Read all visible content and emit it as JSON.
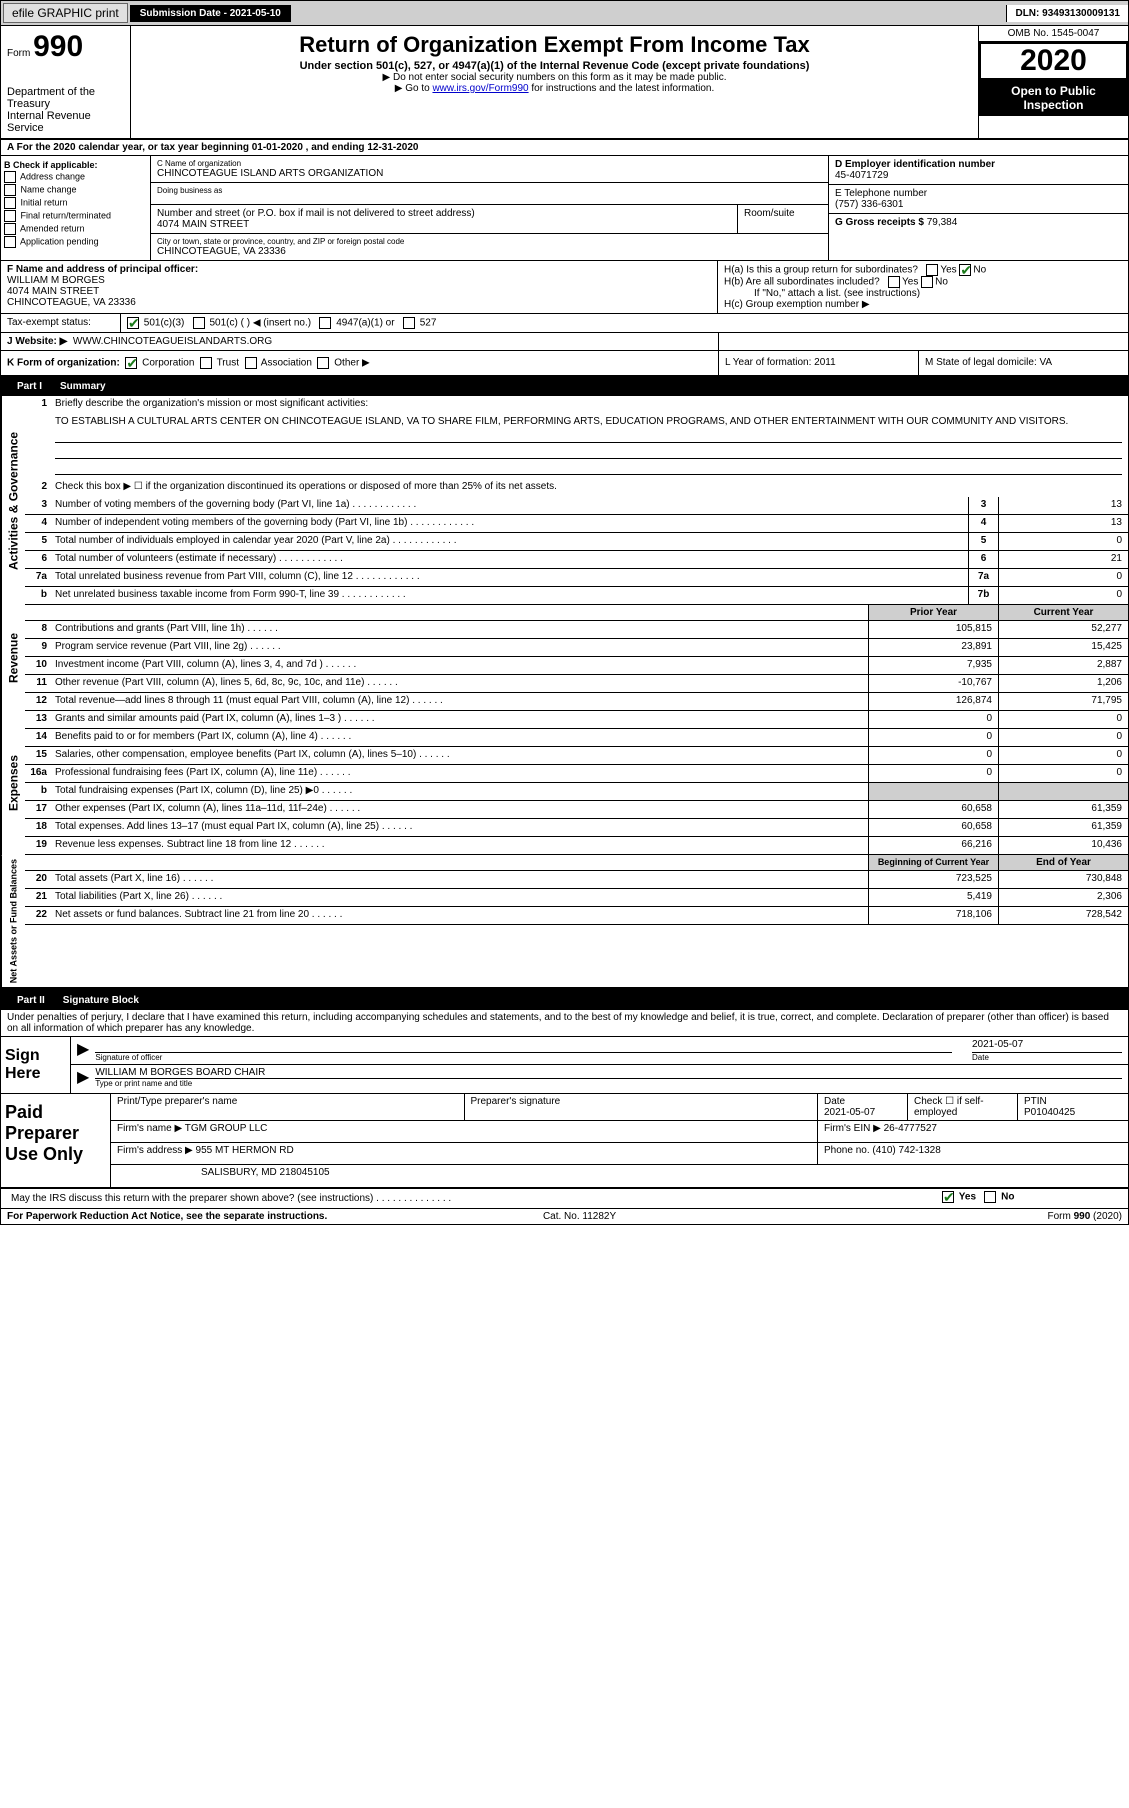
{
  "top": {
    "efile": "efile GRAPHIC print",
    "subdate_label": "Submission Date - 2021-05-10",
    "dln": "DLN: 93493130009131"
  },
  "header": {
    "form_label": "Form",
    "form_num": "990",
    "dept": "Department of the Treasury\nInternal Revenue Service",
    "title": "Return of Organization Exempt From Income Tax",
    "sub1": "Under section 501(c), 527, or 4947(a)(1) of the Internal Revenue Code (except private foundations)",
    "sub2": "▶ Do not enter social security numbers on this form as it may be made public.",
    "sub3_pre": "▶ Go to ",
    "sub3_link": "www.irs.gov/Form990",
    "sub3_post": " for instructions and the latest information.",
    "omb": "OMB No. 1545-0047",
    "year": "2020",
    "open": "Open to Public Inspection"
  },
  "rowA": "A For the 2020 calendar year, or tax year beginning 01-01-2020    , and ending 12-31-2020",
  "B": {
    "label": "B Check if applicable:",
    "opts": [
      "Address change",
      "Name change",
      "Initial return",
      "Final return/terminated",
      "Amended return",
      "Application pending"
    ]
  },
  "C": {
    "name_label": "C Name of organization",
    "name": "CHINCOTEAGUE ISLAND ARTS ORGANIZATION",
    "dba_label": "Doing business as",
    "dba": "",
    "street_label": "Number and street (or P.O. box if mail is not delivered to street address)",
    "street": "4074 MAIN STREET",
    "room_label": "Room/suite",
    "room": "",
    "city_label": "City or town, state or province, country, and ZIP or foreign postal code",
    "city": "CHINCOTEAGUE, VA  23336"
  },
  "D": {
    "label": "D Employer identification number",
    "val": "45-4071729"
  },
  "E": {
    "label": "E Telephone number",
    "val": "(757) 336-6301"
  },
  "G": {
    "label": "G Gross receipts $",
    "val": "79,384"
  },
  "F": {
    "label": "F  Name and address of principal officer:",
    "name": "WILLIAM M BORGES",
    "addr1": "4074 MAIN STREET",
    "addr2": "CHINCOTEAGUE, VA  23336"
  },
  "H": {
    "a": "H(a)  Is this a group return for subordinates?",
    "b": "H(b)  Are all subordinates included?",
    "b_note": "If \"No,\" attach a list. (see instructions)",
    "c": "H(c)  Group exemption number ▶"
  },
  "I": {
    "label": "Tax-exempt status:",
    "o1": "501(c)(3)",
    "o2": "501(c) (  ) ◀ (insert no.)",
    "o3": "4947(a)(1) or",
    "o4": "527"
  },
  "J": {
    "label": "J   Website: ▶",
    "val": "WWW.CHINCOTEAGUEISLANDARTS.ORG"
  },
  "K": {
    "label": "K Form of organization:",
    "opts": [
      "Corporation",
      "Trust",
      "Association",
      "Other ▶"
    ],
    "L": "L Year of formation: 2011",
    "M": "M State of legal domicile: VA"
  },
  "part1": {
    "hdr": "Part I",
    "title": "Summary",
    "l1": "Briefly describe the organization's mission or most significant activities:",
    "mission": "TO ESTABLISH A CULTURAL ARTS CENTER ON CHINCOTEAGUE ISLAND, VA TO SHARE FILM, PERFORMING ARTS, EDUCATION PROGRAMS, AND OTHER ENTERTAINMENT WITH OUR COMMUNITY AND VISITORS.",
    "l2": "Check this box ▶ ☐  if the organization discontinued its operations or disposed of more than 25% of its net assets.",
    "side_gov": "Activities & Governance",
    "side_rev": "Revenue",
    "side_exp": "Expenses",
    "side_net": "Net Assets or Fund Balances",
    "lines_gov": [
      {
        "n": "3",
        "d": "Number of voting members of the governing body (Part VI, line 1a)",
        "box": "3",
        "v": "13"
      },
      {
        "n": "4",
        "d": "Number of independent voting members of the governing body (Part VI, line 1b)",
        "box": "4",
        "v": "13"
      },
      {
        "n": "5",
        "d": "Total number of individuals employed in calendar year 2020 (Part V, line 2a)",
        "box": "5",
        "v": "0"
      },
      {
        "n": "6",
        "d": "Total number of volunteers (estimate if necessary)",
        "box": "6",
        "v": "21"
      },
      {
        "n": "7a",
        "d": "Total unrelated business revenue from Part VIII, column (C), line 12",
        "box": "7a",
        "v": "0"
      },
      {
        "n": "b",
        "d": "Net unrelated business taxable income from Form 990-T, line 39",
        "box": "7b",
        "v": "0"
      }
    ],
    "col_prior": "Prior Year",
    "col_curr": "Current Year",
    "lines_rev": [
      {
        "n": "8",
        "d": "Contributions and grants (Part VIII, line 1h)",
        "p": "105,815",
        "c": "52,277"
      },
      {
        "n": "9",
        "d": "Program service revenue (Part VIII, line 2g)",
        "p": "23,891",
        "c": "15,425"
      },
      {
        "n": "10",
        "d": "Investment income (Part VIII, column (A), lines 3, 4, and 7d )",
        "p": "7,935",
        "c": "2,887"
      },
      {
        "n": "11",
        "d": "Other revenue (Part VIII, column (A), lines 5, 6d, 8c, 9c, 10c, and 11e)",
        "p": "-10,767",
        "c": "1,206"
      },
      {
        "n": "12",
        "d": "Total revenue—add lines 8 through 11 (must equal Part VIII, column (A), line 12)",
        "p": "126,874",
        "c": "71,795"
      }
    ],
    "lines_exp": [
      {
        "n": "13",
        "d": "Grants and similar amounts paid (Part IX, column (A), lines 1–3 )",
        "p": "0",
        "c": "0"
      },
      {
        "n": "14",
        "d": "Benefits paid to or for members (Part IX, column (A), line 4)",
        "p": "0",
        "c": "0"
      },
      {
        "n": "15",
        "d": "Salaries, other compensation, employee benefits (Part IX, column (A), lines 5–10)",
        "p": "0",
        "c": "0"
      },
      {
        "n": "16a",
        "d": "Professional fundraising fees (Part IX, column (A), line 11e)",
        "p": "0",
        "c": "0"
      },
      {
        "n": "b",
        "d": "Total fundraising expenses (Part IX, column (D), line 25) ▶0",
        "p": "",
        "c": "",
        "shade": true
      },
      {
        "n": "17",
        "d": "Other expenses (Part IX, column (A), lines 11a–11d, 11f–24e)",
        "p": "60,658",
        "c": "61,359"
      },
      {
        "n": "18",
        "d": "Total expenses. Add lines 13–17 (must equal Part IX, column (A), line 25)",
        "p": "60,658",
        "c": "61,359"
      },
      {
        "n": "19",
        "d": "Revenue less expenses. Subtract line 18 from line 12",
        "p": "66,216",
        "c": "10,436"
      }
    ],
    "col_begin": "Beginning of Current Year",
    "col_end": "End of Year",
    "lines_net": [
      {
        "n": "20",
        "d": "Total assets (Part X, line 16)",
        "p": "723,525",
        "c": "730,848"
      },
      {
        "n": "21",
        "d": "Total liabilities (Part X, line 26)",
        "p": "5,419",
        "c": "2,306"
      },
      {
        "n": "22",
        "d": "Net assets or fund balances. Subtract line 21 from line 20",
        "p": "718,106",
        "c": "728,542"
      }
    ]
  },
  "part2": {
    "hdr": "Part II",
    "title": "Signature Block",
    "decl": "Under penalties of perjury, I declare that I have examined this return, including accompanying schedules and statements, and to the best of my knowledge and belief, it is true, correct, and complete. Declaration of preparer (other than officer) is based on all information of which preparer has any knowledge.",
    "sign_here": "Sign Here",
    "sig_officer": "Signature of officer",
    "sig_date": "2021-05-07",
    "date_lbl": "Date",
    "name_title": "WILLIAM M BORGES  BOARD CHAIR",
    "type_lbl": "Type or print name and title",
    "paid": "Paid Preparer Use Only",
    "p_name_lbl": "Print/Type preparer's name",
    "p_sig_lbl": "Preparer's signature",
    "p_date_lbl": "Date",
    "p_date": "2021-05-07",
    "p_check": "Check ☐ if self-employed",
    "ptin_lbl": "PTIN",
    "ptin": "P01040425",
    "firm_name_lbl": "Firm's name    ▶",
    "firm_name": "TGM GROUP LLC",
    "firm_ein_lbl": "Firm's EIN ▶",
    "firm_ein": "26-4777527",
    "firm_addr_lbl": "Firm's address ▶",
    "firm_addr1": "955 MT HERMON RD",
    "firm_addr2": "SALISBURY, MD  218045105",
    "phone_lbl": "Phone no.",
    "phone": "(410) 742-1328",
    "irs_q": "May the IRS discuss this return with the preparer shown above? (see instructions)",
    "yes": "Yes",
    "no": "No"
  },
  "footer": {
    "left": "For Paperwork Reduction Act Notice, see the separate instructions.",
    "mid": "Cat. No. 11282Y",
    "right": "Form 990 (2020)"
  }
}
